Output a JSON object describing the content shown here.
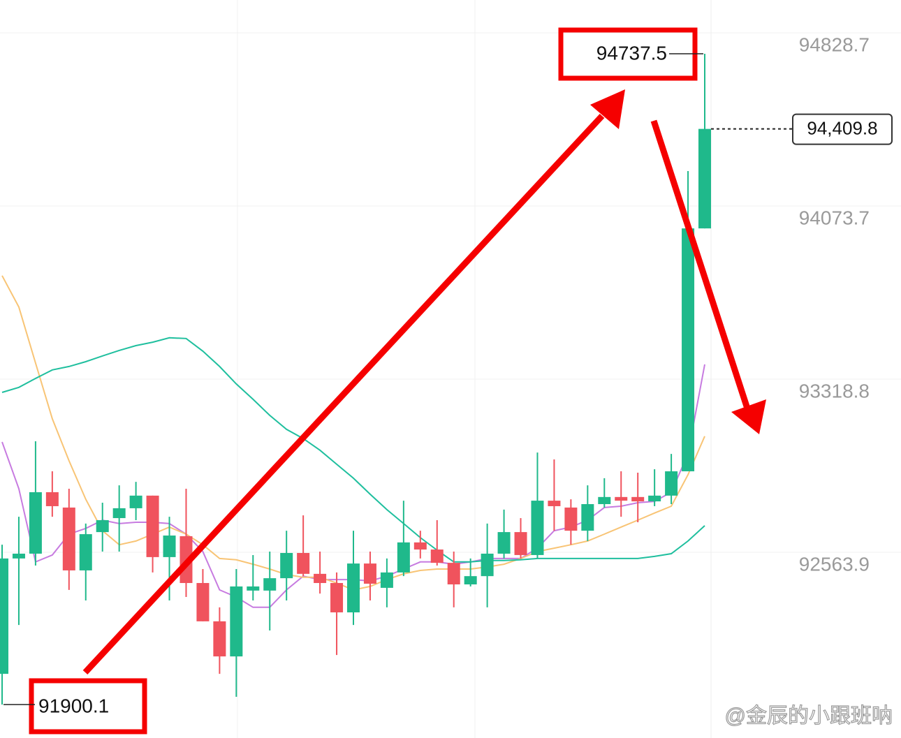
{
  "chart_data": {
    "type": "candlestick",
    "open": [
      92034,
      92537,
      92558,
      92826,
      92759,
      92485,
      92652,
      92713,
      92756,
      92811,
      92543,
      92634,
      92430,
      92263,
      92110,
      92397,
      92397,
      92451,
      92561,
      92470,
      92430,
      92302,
      92515,
      92409,
      92476,
      92607,
      92576,
      92518,
      92424,
      92460,
      92558,
      92652,
      92552,
      92789,
      92759,
      92658,
      92774,
      92805,
      92805,
      92786,
      92811,
      92917,
      93976
    ],
    "high": [
      92597,
      92719,
      93048,
      92917,
      92841,
      92689,
      92780,
      92856,
      92871,
      92811,
      92719,
      92841,
      92491,
      92324,
      92491,
      92552,
      92567,
      92658,
      92725,
      92567,
      92476,
      92658,
      92567,
      92537,
      92789,
      92658,
      92704,
      92567,
      92537,
      92689,
      92750,
      92713,
      92999,
      92969,
      92795,
      92856,
      92887,
      92917,
      92911,
      92926,
      92993,
      94226,
      94737.5
    ],
    "low": [
      91900.1,
      92247,
      92506,
      92719,
      92400,
      92354,
      92567,
      92567,
      92704,
      92476,
      92354,
      92369,
      92263,
      92034,
      91934,
      92354,
      92223,
      92354,
      92460,
      92384,
      92116,
      92247,
      92354,
      92324,
      92460,
      92537,
      92506,
      92324,
      92415,
      92324,
      92537,
      92537,
      92537,
      92658,
      92597,
      92613,
      92759,
      92719,
      92695,
      92765,
      92774,
      92917,
      93976
    ],
    "close": [
      92537,
      92558,
      92826,
      92765,
      92485,
      92643,
      92704,
      92756,
      92811,
      92543,
      92637,
      92430,
      92263,
      92110,
      92415,
      92415,
      92451,
      92561,
      92470,
      92430,
      92302,
      92515,
      92427,
      92476,
      92607,
      92576,
      92518,
      92424,
      92460,
      92558,
      92652,
      92552,
      92789,
      92765,
      92658,
      92774,
      92805,
      92789,
      92786,
      92811,
      92917,
      93976,
      94409.8
    ],
    "up_color": "#1fb98b",
    "down_color": "#f0535d",
    "lines": [
      {
        "color": "#c77be0",
        "values": [
          93045,
          92841,
          92522,
          92552,
          92643,
          92668,
          92704,
          92689,
          92695,
          92695,
          92689,
          92643,
          92567,
          92400,
          92369,
          92324,
          92324,
          92400,
          92460,
          92445,
          92445,
          92445,
          92439,
          92460,
          92491,
          92522,
          92522,
          92512,
          92522,
          92537,
          92537,
          92537,
          92582,
          92658,
          92674,
          92704,
          92759,
          92765,
          92780,
          92786,
          92826,
          92993,
          93383
        ]
      },
      {
        "color": "#f8c475",
        "values": [
          93770,
          93633,
          93389,
          93146,
          92963,
          92795,
          92658,
          92597,
          92613,
          92643,
          92674,
          92643,
          92597,
          92537,
          92531,
          92512,
          92491,
          92467,
          92455,
          92455,
          92430,
          92400,
          92415,
          92445,
          92470,
          92485,
          92491,
          92491,
          92491,
          92500,
          92512,
          92537,
          92567,
          92582,
          92597,
          92613,
          92643,
          92674,
          92704,
          92735,
          92765,
          92902,
          93070
        ]
      },
      {
        "color": "#1fbf9e",
        "values": [
          93261,
          93283,
          93322,
          93359,
          93374,
          93395,
          93420,
          93444,
          93465,
          93480,
          93499,
          93496,
          93441,
          93374,
          93298,
          93231,
          93161,
          93100,
          93060,
          93009,
          92948,
          92887,
          92817,
          92750,
          92689,
          92628,
          92573,
          92522,
          92522,
          92528,
          92528,
          92531,
          92537,
          92537,
          92537,
          92537,
          92537,
          92537,
          92537,
          92546,
          92558,
          92613,
          92680
        ]
      }
    ],
    "ylim": [
      91754.3,
      94971.8
    ],
    "yticks": [
      94828.7,
      94073.7,
      93318.8,
      92563.9
    ],
    "grid": true,
    "high_marker": 94737.5,
    "low_marker": 91900.1,
    "last_price": {
      "value": 94409.8,
      "label": "94,409.8"
    },
    "watermark": "@金辰的小跟班呐"
  }
}
